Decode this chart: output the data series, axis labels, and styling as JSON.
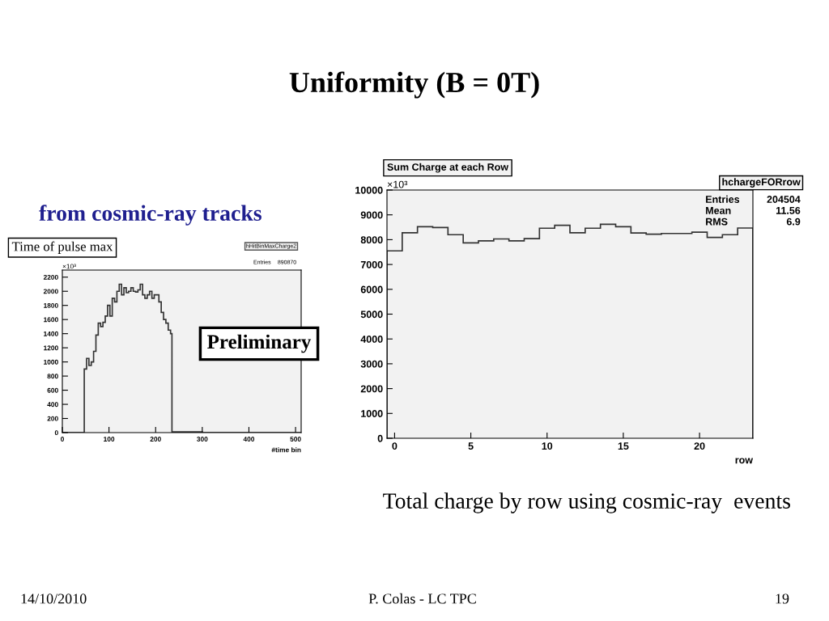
{
  "chart_data": [
    {
      "type": "histogram",
      "title": "Time of pulse max",
      "xlabel": "#time bin",
      "bins": [
        0,
        47,
        52,
        57,
        62,
        67,
        72,
        77,
        82,
        87,
        92,
        97,
        102,
        107,
        112,
        117,
        122,
        127,
        132,
        137,
        142,
        147,
        152,
        157,
        162,
        167,
        172,
        177,
        182,
        187,
        192,
        197,
        202,
        207,
        212,
        217,
        222,
        227,
        232,
        235,
        300,
        512
      ],
      "values": [
        0,
        900,
        1050,
        950,
        1000,
        1150,
        1380,
        1550,
        1500,
        1560,
        1650,
        1800,
        1650,
        1900,
        1850,
        2000,
        2100,
        1950,
        2050,
        1980,
        2000,
        2050,
        2000,
        1990,
        2020,
        2100,
        1950,
        1900,
        1950,
        2000,
        1900,
        1950,
        1950,
        1850,
        1700,
        1600,
        1550,
        1450,
        1400,
        10,
        0
      ],
      "color": "#333333",
      "xlim": [
        0,
        512
      ],
      "ylim": [
        0,
        2300
      ],
      "xticks": [
        0,
        100,
        200,
        300,
        400,
        500
      ],
      "yticks": [
        0,
        200,
        400,
        600,
        800,
        1000,
        1200,
        1400,
        1600,
        1800,
        2000,
        2200
      ],
      "grid": false,
      "annotations": [
        "Uniformity (B = 0T)",
        "from cosmic-ray tracks",
        "Preliminary",
        "14/10/2010",
        "P. Colas - LC TPC",
        "19",
        "×10³",
        "hHitBinMaxCharge2",
        "Entries",
        "890870"
      ]
    },
    {
      "type": "histogram",
      "title": "Sum Charge at each Row",
      "xlabel": "row",
      "bins": [
        -0.5,
        0.5,
        1.5,
        2.5,
        3.5,
        4.5,
        5.5,
        6.5,
        7.5,
        8.5,
        9.5,
        10.5,
        11.5,
        12.5,
        13.5,
        14.5,
        15.5,
        16.5,
        17.5,
        18.5,
        19.5,
        20.5,
        21.5,
        22.5,
        23.5
      ],
      "values": [
        7550,
        8280,
        8520,
        8490,
        8200,
        7870,
        7950,
        8030,
        7950,
        8040,
        8460,
        8580,
        8280,
        8460,
        8620,
        8520,
        8270,
        8220,
        8250,
        8250,
        8300,
        8090,
        8200,
        8470
      ],
      "color": "#333333",
      "xlim": [
        -0.5,
        23.5
      ],
      "ylim": [
        0,
        10000
      ],
      "xticks": [
        0,
        5,
        10,
        15,
        20
      ],
      "yticks": [
        0,
        1000,
        2000,
        3000,
        4000,
        5000,
        6000,
        7000,
        8000,
        9000,
        10000
      ],
      "grid": false,
      "annotations": [
        "Total charge by row using cosmic-ray  events",
        "×10³",
        "hchargeFORrow",
        "Entries",
        "204504",
        "Mean",
        "11.56",
        "RMS",
        "6.9"
      ]
    }
  ]
}
